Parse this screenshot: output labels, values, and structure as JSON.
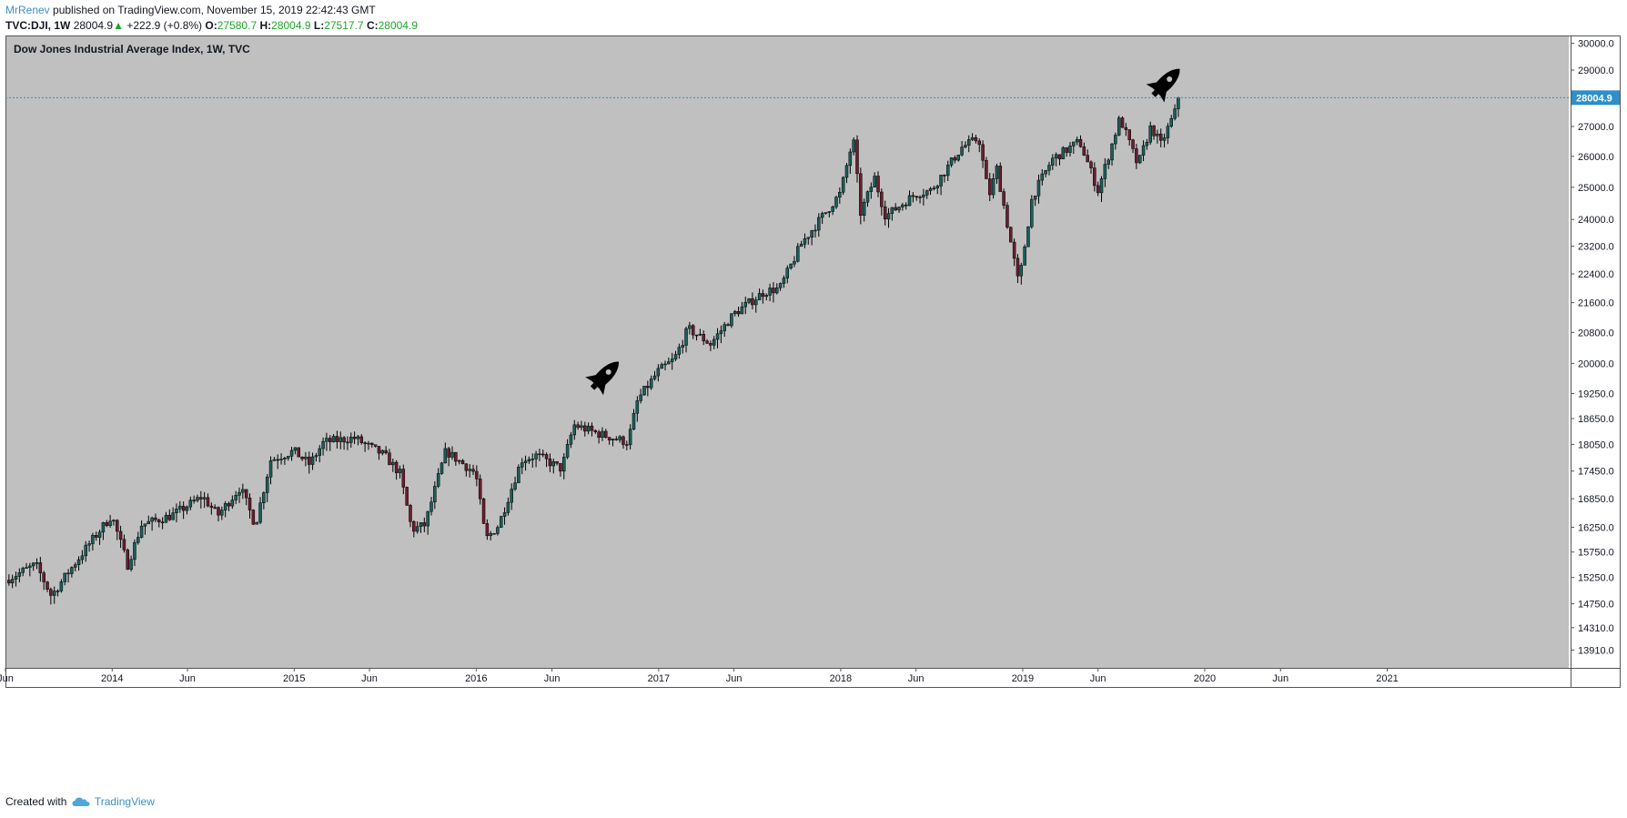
{
  "header": {
    "author": "MrRenev",
    "published_text": "published on TradingView.com, November 15, 2019 22:42:43 GMT",
    "symbol": "TVC:DJI, 1W",
    "last": "28004.9",
    "arrow": "▲",
    "change": "+222.9 (+0.8%)",
    "o_label": "O:",
    "o_value": "27580.7",
    "h_label": "H:",
    "h_value": "28004.9",
    "l_label": "L:",
    "l_value": "27517.7",
    "c_label": "C:",
    "c_value": "28004.9"
  },
  "footer": {
    "created_with": "Created with",
    "brand": "TradingView",
    "logo_icon": "tradingview-cloud-icon"
  },
  "colors": {
    "plot_background": "#c0c0c0",
    "up_candle": "#1a5f5a",
    "down_candle": "#6b1d2e",
    "last_price_line": "#2e8fc9",
    "last_price_tag": "#2e8fc9",
    "author_link": "#3b8fc6",
    "positive_change": "#1da52a"
  },
  "annotations": [
    {
      "icon": "rocket-icon",
      "near": "2016-09"
    },
    {
      "icon": "rocket-icon",
      "near": "2019-10"
    }
  ],
  "chart_data": {
    "type": "candlestick",
    "title": "Dow Jones Industrial Average Index, 1W, TVC",
    "xlabel": "",
    "ylabel": "",
    "interval": "1W",
    "scale": "log",
    "grid": false,
    "x_range": [
      "2013-06-01",
      "2021-12-31"
    ],
    "ylim": [
      13600,
      30300
    ],
    "x_tick_labels": [
      {
        "label": "Jun",
        "date": "2013-06-01"
      },
      {
        "label": "2014",
        "date": "2014-01-01"
      },
      {
        "label": "Jun",
        "date": "2014-06-01"
      },
      {
        "label": "2015",
        "date": "2015-01-01"
      },
      {
        "label": "Jun",
        "date": "2015-06-01"
      },
      {
        "label": "2016",
        "date": "2016-01-01"
      },
      {
        "label": "Jun",
        "date": "2016-06-01"
      },
      {
        "label": "2017",
        "date": "2017-01-01"
      },
      {
        "label": "Jun",
        "date": "2017-06-01"
      },
      {
        "label": "2018",
        "date": "2018-01-01"
      },
      {
        "label": "Jun",
        "date": "2018-06-01"
      },
      {
        "label": "2019",
        "date": "2019-01-01"
      },
      {
        "label": "Jun",
        "date": "2019-06-01"
      },
      {
        "label": "2020",
        "date": "2020-01-01"
      },
      {
        "label": "Jun",
        "date": "2020-06-01"
      },
      {
        "label": "2021",
        "date": "2021-01-01"
      }
    ],
    "y_tick_labels": [
      "30000.0",
      "29000.0",
      "27000.0",
      "26000.0",
      "25000.0",
      "24000.0",
      "23200.0",
      "22400.0",
      "21600.0",
      "20800.0",
      "20000.0",
      "19250.0",
      "18650.0",
      "18050.0",
      "17450.0",
      "16850.0",
      "16250.0",
      "15750.0",
      "15250.0",
      "14750.0",
      "14310.0",
      "13910.0"
    ],
    "last_price": 28004.9,
    "last_price_label": "28004.9",
    "close_path": [
      [
        "2013-06-01",
        15200
      ],
      [
        "2013-08-01",
        15500
      ],
      [
        "2013-09-01",
        14900
      ],
      [
        "2013-10-01",
        15300
      ],
      [
        "2013-11-15",
        15900
      ],
      [
        "2013-12-31",
        16500
      ],
      [
        "2014-02-01",
        15500
      ],
      [
        "2014-03-01",
        16300
      ],
      [
        "2014-05-01",
        16500
      ],
      [
        "2014-07-01",
        16900
      ],
      [
        "2014-08-01",
        16500
      ],
      [
        "2014-09-15",
        17100
      ],
      [
        "2014-10-15",
        16300
      ],
      [
        "2014-11-15",
        17700
      ],
      [
        "2014-12-31",
        17900
      ],
      [
        "2015-02-01",
        17600
      ],
      [
        "2015-03-01",
        18100
      ],
      [
        "2015-05-01",
        18200
      ],
      [
        "2015-07-01",
        17800
      ],
      [
        "2015-08-01",
        17400
      ],
      [
        "2015-08-25",
        16200
      ],
      [
        "2015-09-20",
        16300
      ],
      [
        "2015-11-01",
        17900
      ],
      [
        "2015-12-31",
        17400
      ],
      [
        "2016-01-20",
        16000
      ],
      [
        "2016-02-15",
        16300
      ],
      [
        "2016-04-01",
        17700
      ],
      [
        "2016-05-01",
        17800
      ],
      [
        "2016-06-20",
        17500
      ],
      [
        "2016-07-15",
        18500
      ],
      [
        "2016-09-01",
        18300
      ],
      [
        "2016-10-31",
        18100
      ],
      [
        "2016-11-20",
        19100
      ],
      [
        "2016-12-31",
        19800
      ],
      [
        "2017-02-01",
        20100
      ],
      [
        "2017-03-01",
        20900
      ],
      [
        "2017-04-15",
        20500
      ],
      [
        "2017-06-01",
        21300
      ],
      [
        "2017-08-01",
        21900
      ],
      [
        "2017-09-01",
        22000
      ],
      [
        "2017-10-15",
        23300
      ],
      [
        "2017-12-31",
        24800
      ],
      [
        "2018-01-26",
        26600
      ],
      [
        "2018-02-10",
        24200
      ],
      [
        "2018-03-10",
        25300
      ],
      [
        "2018-04-01",
        24100
      ],
      [
        "2018-06-01",
        24800
      ],
      [
        "2018-07-01",
        24900
      ],
      [
        "2018-09-01",
        26300
      ],
      [
        "2018-10-05",
        26600
      ],
      [
        "2018-10-25",
        24700
      ],
      [
        "2018-11-10",
        25600
      ],
      [
        "2018-12-24",
        22100
      ],
      [
        "2019-01-20",
        24700
      ],
      [
        "2019-03-01",
        25900
      ],
      [
        "2019-04-25",
        26500
      ],
      [
        "2019-06-01",
        24900
      ],
      [
        "2019-07-15",
        27300
      ],
      [
        "2019-08-20",
        25700
      ],
      [
        "2019-09-15",
        27000
      ],
      [
        "2019-10-05",
        26400
      ],
      [
        "2019-11-15",
        28004.9
      ]
    ]
  }
}
